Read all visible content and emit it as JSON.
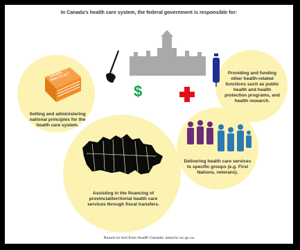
{
  "title": "In Canada's health care system, the federal government is responsible for:",
  "book_label": "CANADA HEALTH ACT",
  "items": {
    "principles": "Setting and administering national principles for the health care system.",
    "financing": "Assisting in the financing of provincial/territorial health care services through fiscal transfers.",
    "delivering": "Delivering health care services to specific groups (e.g. First Nations, veterans).",
    "functions": "Providing and funding other health-related functions such as public health and health protection programs, and health research."
  },
  "footer": "Based on text from Health Canada: www.hc-sc.gc.ca",
  "colors": {
    "circle": "#fcf3b3",
    "book": "#f28c28",
    "parliament": "#a9a9a9",
    "dollar": "#13a04b",
    "cross": "#e3101b",
    "people": [
      "#6a2c7a",
      "#2a7ab6"
    ],
    "syringe": "#1f2f8f",
    "map": "#0b0b0b"
  }
}
